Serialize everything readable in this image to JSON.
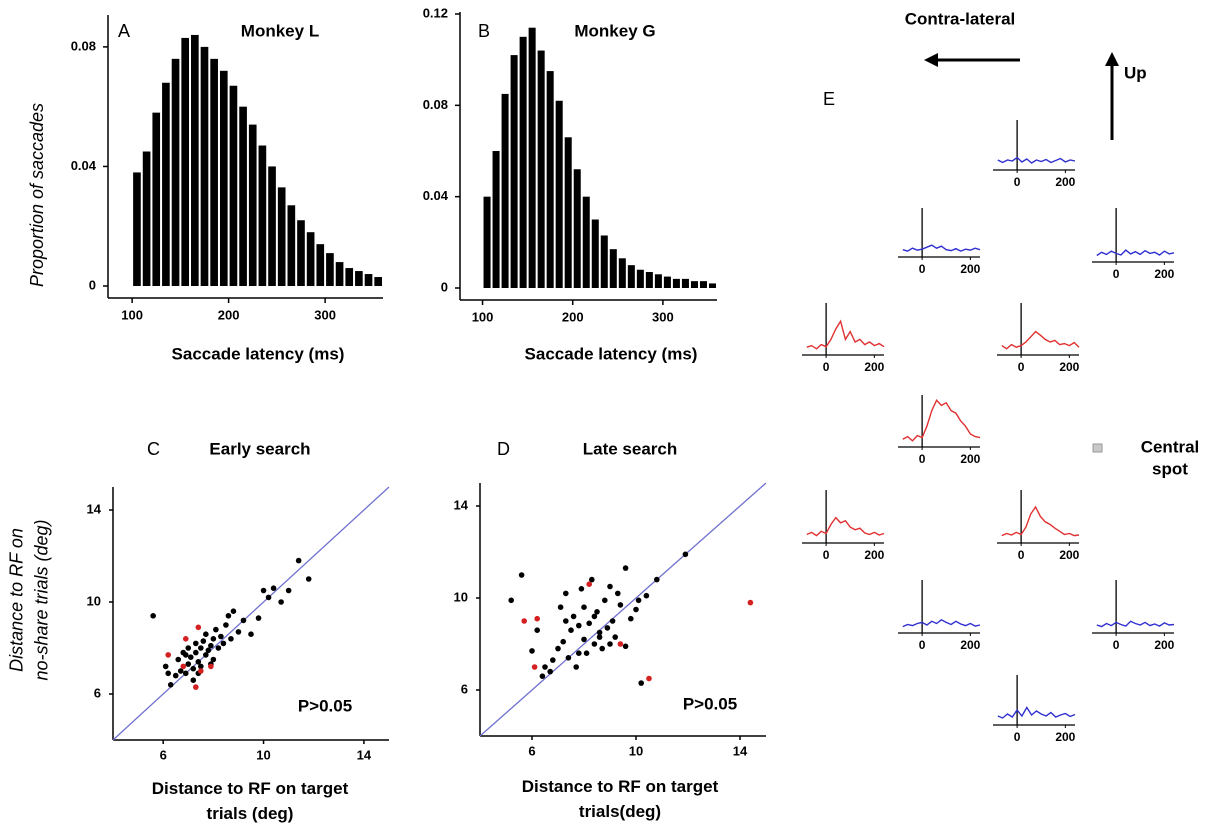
{
  "chart_data": [
    {
      "type": "histogram",
      "panel": "A",
      "title": "Monkey L",
      "ylabel": "Proportion of saccades",
      "xlabel": "Saccade latency (ms)",
      "bins": [
        100,
        110,
        120,
        130,
        140,
        150,
        160,
        170,
        180,
        190,
        200,
        210,
        220,
        230,
        240,
        250,
        260,
        270,
        280,
        290,
        300,
        310,
        320,
        330,
        340,
        350,
        360
      ],
      "values": [
        0.038,
        0.045,
        0.058,
        0.068,
        0.076,
        0.083,
        0.084,
        0.08,
        0.076,
        0.072,
        0.067,
        0.06,
        0.054,
        0.047,
        0.04,
        0.033,
        0.027,
        0.022,
        0.018,
        0.014,
        0.011,
        0.008,
        0.006,
        0.005,
        0.004,
        0.003
      ],
      "color": "#000000",
      "xlim": [
        75,
        360
      ],
      "ylim": [
        0,
        0.09
      ],
      "xticks": [
        100,
        200,
        300
      ],
      "yticks": [
        0,
        0.04,
        0.08
      ]
    },
    {
      "type": "histogram",
      "panel": "B",
      "title": "Monkey G",
      "xlabel": "Saccade latency (ms)",
      "bins": [
        100,
        110,
        120,
        130,
        140,
        150,
        160,
        170,
        180,
        190,
        200,
        210,
        220,
        230,
        240,
        250,
        260,
        270,
        280,
        290,
        300,
        310,
        320,
        330,
        340,
        350,
        360
      ],
      "values": [
        0.04,
        0.06,
        0.085,
        0.102,
        0.11,
        0.114,
        0.104,
        0.095,
        0.082,
        0.066,
        0.052,
        0.04,
        0.03,
        0.023,
        0.017,
        0.013,
        0.01,
        0.008,
        0.007,
        0.006,
        0.005,
        0.004,
        0.004,
        0.003,
        0.003,
        0.002
      ],
      "color": "#000000",
      "xlim": [
        75,
        360
      ],
      "ylim": [
        0,
        0.12
      ],
      "xticks": [
        100,
        200,
        300
      ],
      "yticks": [
        0,
        0.04,
        0.08,
        0.12
      ]
    },
    {
      "type": "scatter",
      "panel": "C",
      "title": "Early search",
      "ylabel": [
        "Distance to RF on",
        "no-share trials (deg)"
      ],
      "xlabel": [
        "Distance to RF on target",
        "trials (deg)"
      ],
      "annotation": "P>0.05",
      "diagonal": true,
      "diagonal_color": "#7070d0",
      "xlim": [
        4,
        15
      ],
      "ylim": [
        4,
        15
      ],
      "xticks": [
        6,
        10,
        14
      ],
      "yticks": [
        6,
        10,
        14
      ],
      "series": [
        {
          "color": "#000000",
          "x": [
            5.6,
            6.1,
            6.3,
            6.5,
            6.6,
            6.7,
            6.8,
            6.9,
            7.0,
            7.0,
            7.1,
            7.2,
            7.3,
            7.3,
            7.4,
            7.5,
            7.5,
            7.6,
            7.7,
            7.7,
            7.8,
            7.9,
            8.0,
            8.0,
            8.1,
            8.2,
            8.3,
            8.4,
            8.5,
            8.6,
            8.8,
            9.0,
            9.2,
            9.5,
            9.8,
            10.0,
            10.2,
            10.4,
            10.7,
            11.0,
            11.4,
            11.8,
            6.2,
            6.9,
            7.4,
            7.9,
            8.7,
            7.2
          ],
          "values": [
            9.4,
            7.2,
            6.4,
            6.8,
            7.5,
            7.0,
            7.8,
            6.9,
            7.3,
            8.0,
            7.6,
            7.1,
            7.8,
            8.2,
            7.4,
            8.0,
            7.2,
            8.3,
            7.7,
            8.6,
            7.9,
            8.1,
            8.4,
            7.5,
            8.8,
            8.0,
            8.5,
            8.2,
            9.0,
            9.4,
            9.6,
            8.7,
            9.2,
            8.6,
            9.3,
            10.5,
            10.2,
            10.6,
            10.0,
            10.5,
            11.8,
            11.0,
            6.9,
            7.7,
            6.9,
            7.3,
            8.4,
            6.6
          ]
        },
        {
          "color": "#d42020",
          "x": [
            6.2,
            6.8,
            7.4,
            7.5,
            7.9,
            7.3,
            6.9
          ],
          "values": [
            7.7,
            7.2,
            8.9,
            7.0,
            7.2,
            6.3,
            8.4
          ]
        }
      ]
    },
    {
      "type": "scatter",
      "panel": "D",
      "title": "Late search",
      "xlabel": [
        "Distance to RF on target",
        "trials(deg)"
      ],
      "annotation": "P>0.05",
      "diagonal": true,
      "diagonal_color": "#7070d0",
      "xlim": [
        4,
        15
      ],
      "ylim": [
        4,
        15
      ],
      "xticks": [
        6,
        10,
        14
      ],
      "yticks": [
        6,
        10,
        14
      ],
      "series": [
        {
          "color": "#000000",
          "x": [
            5.2,
            5.6,
            6.0,
            6.2,
            6.4,
            6.5,
            6.8,
            7.0,
            7.1,
            7.2,
            7.3,
            7.4,
            7.5,
            7.6,
            7.7,
            7.8,
            7.9,
            8.0,
            8.0,
            8.1,
            8.2,
            8.3,
            8.4,
            8.5,
            8.6,
            8.7,
            8.8,
            8.9,
            9.0,
            9.1,
            9.2,
            9.4,
            9.6,
            9.8,
            10.0,
            10.2,
            10.4,
            10.8,
            11.9,
            9.6,
            6.7,
            7.3,
            8.6,
            9.3,
            7.8,
            8.4,
            9.0,
            10.1
          ],
          "values": [
            9.9,
            11.0,
            7.7,
            8.6,
            6.6,
            7.0,
            7.3,
            7.8,
            9.6,
            8.1,
            10.2,
            7.4,
            8.6,
            9.2,
            7.0,
            8.8,
            10.4,
            8.2,
            9.6,
            7.6,
            8.9,
            10.8,
            8.0,
            9.4,
            8.5,
            7.8,
            9.9,
            8.7,
            10.5,
            9.0,
            8.3,
            9.7,
            11.3,
            9.1,
            9.5,
            6.3,
            10.1,
            10.8,
            11.9,
            7.9,
            6.8,
            9.0,
            8.3,
            10.2,
            7.6,
            9.2,
            8.0,
            9.9
          ]
        },
        {
          "color": "#d42020",
          "x": [
            5.7,
            6.2,
            6.1,
            8.2,
            9.4,
            10.5,
            14.4
          ],
          "values": [
            9.0,
            9.1,
            7.0,
            10.6,
            8.0,
            6.5,
            9.8
          ]
        }
      ]
    },
    {
      "type": "line",
      "color": "#3030d0",
      "xlim": [
        -100,
        240
      ],
      "ylim": [
        0,
        10
      ],
      "xticks": [
        0,
        200
      ],
      "x": [
        -80,
        -60,
        -40,
        -20,
        0,
        20,
        40,
        60,
        80,
        100,
        120,
        140,
        160,
        180,
        200,
        220,
        240
      ],
      "values": [
        2,
        1.5,
        2,
        1.8,
        2.5,
        1.6,
        2.2,
        1.4,
        2,
        1.7,
        2.1,
        1.5,
        1.9,
        2.3,
        1.6,
        2,
        1.8
      ]
    },
    {
      "type": "line",
      "color": "#3030d0",
      "xlim": [
        -100,
        240
      ],
      "ylim": [
        0,
        10
      ],
      "xticks": [
        0,
        200
      ],
      "x": [
        -80,
        -60,
        -40,
        -20,
        0,
        20,
        40,
        60,
        80,
        100,
        120,
        140,
        160,
        180,
        200,
        220,
        240
      ],
      "values": [
        1.5,
        1.2,
        1.8,
        1.4,
        1.6,
        2,
        2.4,
        1.8,
        2.2,
        1.5,
        1.3,
        1.7,
        1.2,
        1.6,
        1.4,
        1.8,
        1.5
      ]
    },
    {
      "type": "line",
      "color": "#3030d0",
      "xlim": [
        -100,
        240
      ],
      "ylim": [
        0,
        10
      ],
      "xticks": [
        0,
        200
      ],
      "x": [
        -80,
        -60,
        -40,
        -20,
        0,
        20,
        40,
        60,
        80,
        100,
        120,
        140,
        160,
        180,
        200,
        220,
        240
      ],
      "values": [
        1.2,
        1.8,
        1.4,
        2,
        1.6,
        1.3,
        2.2,
        1.5,
        1.9,
        1.4,
        2.1,
        1.6,
        1.8,
        1.3,
        2,
        1.5,
        1.7
      ]
    },
    {
      "type": "line",
      "color": "#e03030",
      "xlim": [
        -100,
        240
      ],
      "ylim": [
        0,
        10
      ],
      "xticks": [
        0,
        200
      ],
      "x": [
        -80,
        -60,
        -40,
        -20,
        0,
        20,
        40,
        60,
        80,
        100,
        120,
        140,
        160,
        180,
        200,
        220,
        240
      ],
      "values": [
        1.5,
        1.8,
        1.2,
        2,
        1.6,
        3,
        5,
        6.5,
        3,
        4.5,
        2.5,
        3,
        2,
        2.5,
        1.8,
        2.2,
        1.6
      ]
    },
    {
      "type": "line",
      "color": "#e03030",
      "xlim": [
        -100,
        240
      ],
      "ylim": [
        0,
        10
      ],
      "xticks": [
        0,
        200
      ],
      "x": [
        -80,
        -60,
        -40,
        -20,
        0,
        20,
        40,
        60,
        80,
        100,
        120,
        140,
        160,
        180,
        200,
        220,
        240
      ],
      "values": [
        1.8,
        1.2,
        2,
        1.5,
        1.8,
        2.5,
        3.5,
        4.5,
        3.8,
        3,
        2.5,
        2.8,
        2,
        2.2,
        1.8,
        2.4,
        1.5
      ]
    },
    {
      "type": "line",
      "color": "#e03030",
      "xlim": [
        -100,
        240
      ],
      "ylim": [
        0,
        10
      ],
      "xticks": [
        0,
        200
      ],
      "x": [
        -80,
        -60,
        -40,
        -20,
        0,
        20,
        40,
        60,
        80,
        100,
        120,
        140,
        160,
        180,
        200,
        220,
        240
      ],
      "values": [
        1.5,
        2,
        1.2,
        2.2,
        1.8,
        4,
        7,
        9,
        8,
        8.5,
        7,
        6.5,
        5,
        4,
        2.5,
        2,
        1.8
      ]
    },
    {
      "type": "line",
      "color": "#e03030",
      "xlim": [
        -100,
        240
      ],
      "ylim": [
        0,
        10
      ],
      "xticks": [
        0,
        200
      ],
      "x": [
        -80,
        -60,
        -40,
        -20,
        0,
        20,
        40,
        60,
        80,
        100,
        120,
        140,
        160,
        180,
        200,
        220,
        240
      ],
      "values": [
        1.6,
        2,
        1.4,
        2.2,
        1.8,
        3.5,
        4.8,
        3.8,
        4.2,
        3,
        2.5,
        2.8,
        1.9,
        1.6,
        2,
        1.5,
        1.8
      ]
    },
    {
      "type": "line",
      "color": "#e03030",
      "xlim": [
        -100,
        240
      ],
      "ylim": [
        0,
        10
      ],
      "xticks": [
        0,
        200
      ],
      "x": [
        -80,
        -60,
        -40,
        -20,
        0,
        20,
        40,
        60,
        80,
        100,
        120,
        140,
        160,
        180,
        200,
        220,
        240
      ],
      "values": [
        1.4,
        1.8,
        1.5,
        2,
        1.6,
        3,
        5.5,
        6.8,
        5,
        4,
        3.5,
        2.8,
        2.2,
        1.6,
        1.8,
        1.4,
        1.5
      ]
    },
    {
      "type": "line",
      "color": "#3030d0",
      "xlim": [
        -100,
        240
      ],
      "ylim": [
        0,
        10
      ],
      "xticks": [
        0,
        200
      ],
      "x": [
        -80,
        -60,
        -40,
        -20,
        0,
        20,
        40,
        60,
        80,
        100,
        120,
        140,
        160,
        180,
        200,
        220,
        240
      ],
      "values": [
        1.2,
        1.6,
        1.4,
        1.8,
        2,
        1.5,
        2.2,
        1.8,
        2.5,
        2,
        1.6,
        2.2,
        1.7,
        1.4,
        1.8,
        1.3,
        1.5
      ]
    },
    {
      "type": "line",
      "color": "#3030d0",
      "xlim": [
        -100,
        240
      ],
      "ylim": [
        0,
        10
      ],
      "xticks": [
        0,
        200
      ],
      "x": [
        -80,
        -60,
        -40,
        -20,
        0,
        20,
        40,
        60,
        80,
        100,
        120,
        140,
        160,
        180,
        200,
        220,
        240
      ],
      "values": [
        1.5,
        1.2,
        1.8,
        1.4,
        2,
        1.6,
        1.3,
        2.2,
        1.8,
        1.5,
        2,
        1.4,
        1.7,
        1.3,
        1.9,
        1.5,
        1.6
      ]
    },
    {
      "type": "line",
      "color": "#3030d0",
      "xlim": [
        -100,
        240
      ],
      "ylim": [
        0,
        10
      ],
      "xticks": [
        0,
        200
      ],
      "x": [
        -80,
        -60,
        -40,
        -20,
        0,
        20,
        40,
        60,
        80,
        100,
        120,
        140,
        160,
        180,
        200,
        220,
        240
      ],
      "values": [
        1.8,
        1.4,
        2.2,
        1.6,
        3,
        1.8,
        3.5,
        2,
        2.8,
        2.2,
        1.8,
        2.5,
        1.6,
        2,
        2.3,
        1.7,
        2.1
      ]
    }
  ],
  "panel_e": {
    "label": "E",
    "contra": "Contra-lateral",
    "up": "Up",
    "central_spot": [
      "Central",
      "spot"
    ]
  }
}
